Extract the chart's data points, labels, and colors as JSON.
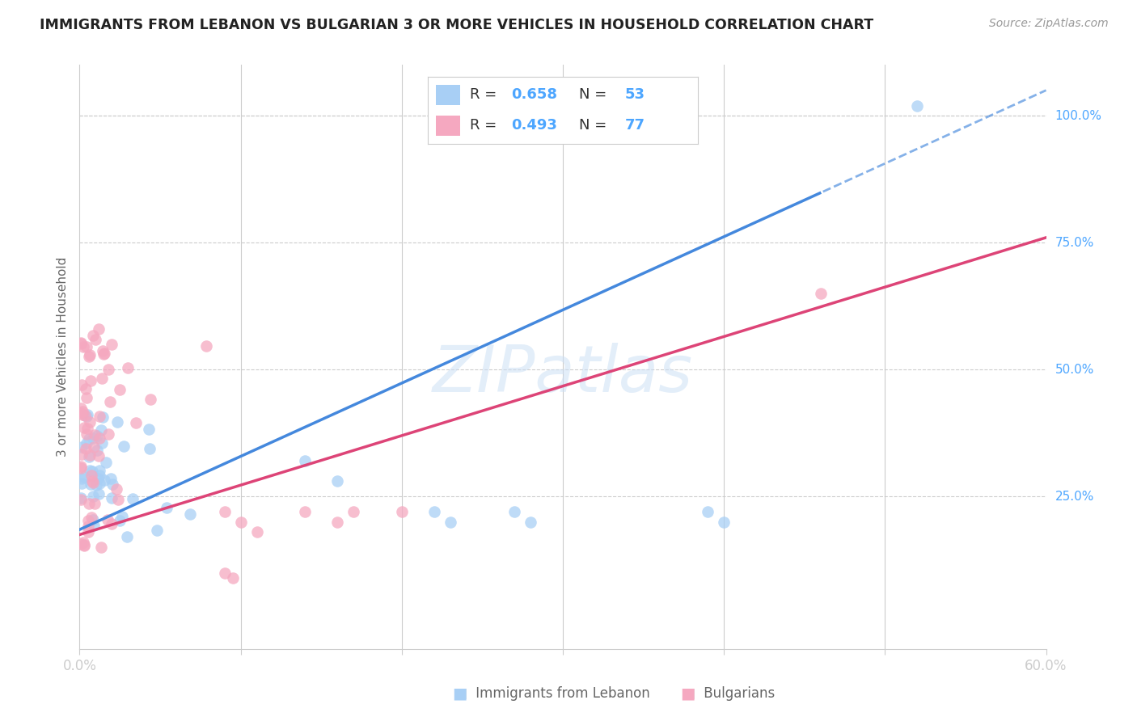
{
  "title": "IMMIGRANTS FROM LEBANON VS BULGARIAN 3 OR MORE VEHICLES IN HOUSEHOLD CORRELATION CHART",
  "source": "Source: ZipAtlas.com",
  "tick_color": "#4da6ff",
  "ylabel": "3 or more Vehicles in Household",
  "xlim": [
    0.0,
    0.6
  ],
  "ylim": [
    -0.05,
    1.1
  ],
  "blue_R": 0.658,
  "blue_N": 53,
  "pink_R": 0.493,
  "pink_N": 77,
  "blue_color": "#a8cff5",
  "pink_color": "#f5a8c0",
  "blue_line_color": "#4488dd",
  "pink_line_color": "#dd4477",
  "watermark": "ZIPatlas",
  "background_color": "#ffffff",
  "grid_color": "#cccccc"
}
